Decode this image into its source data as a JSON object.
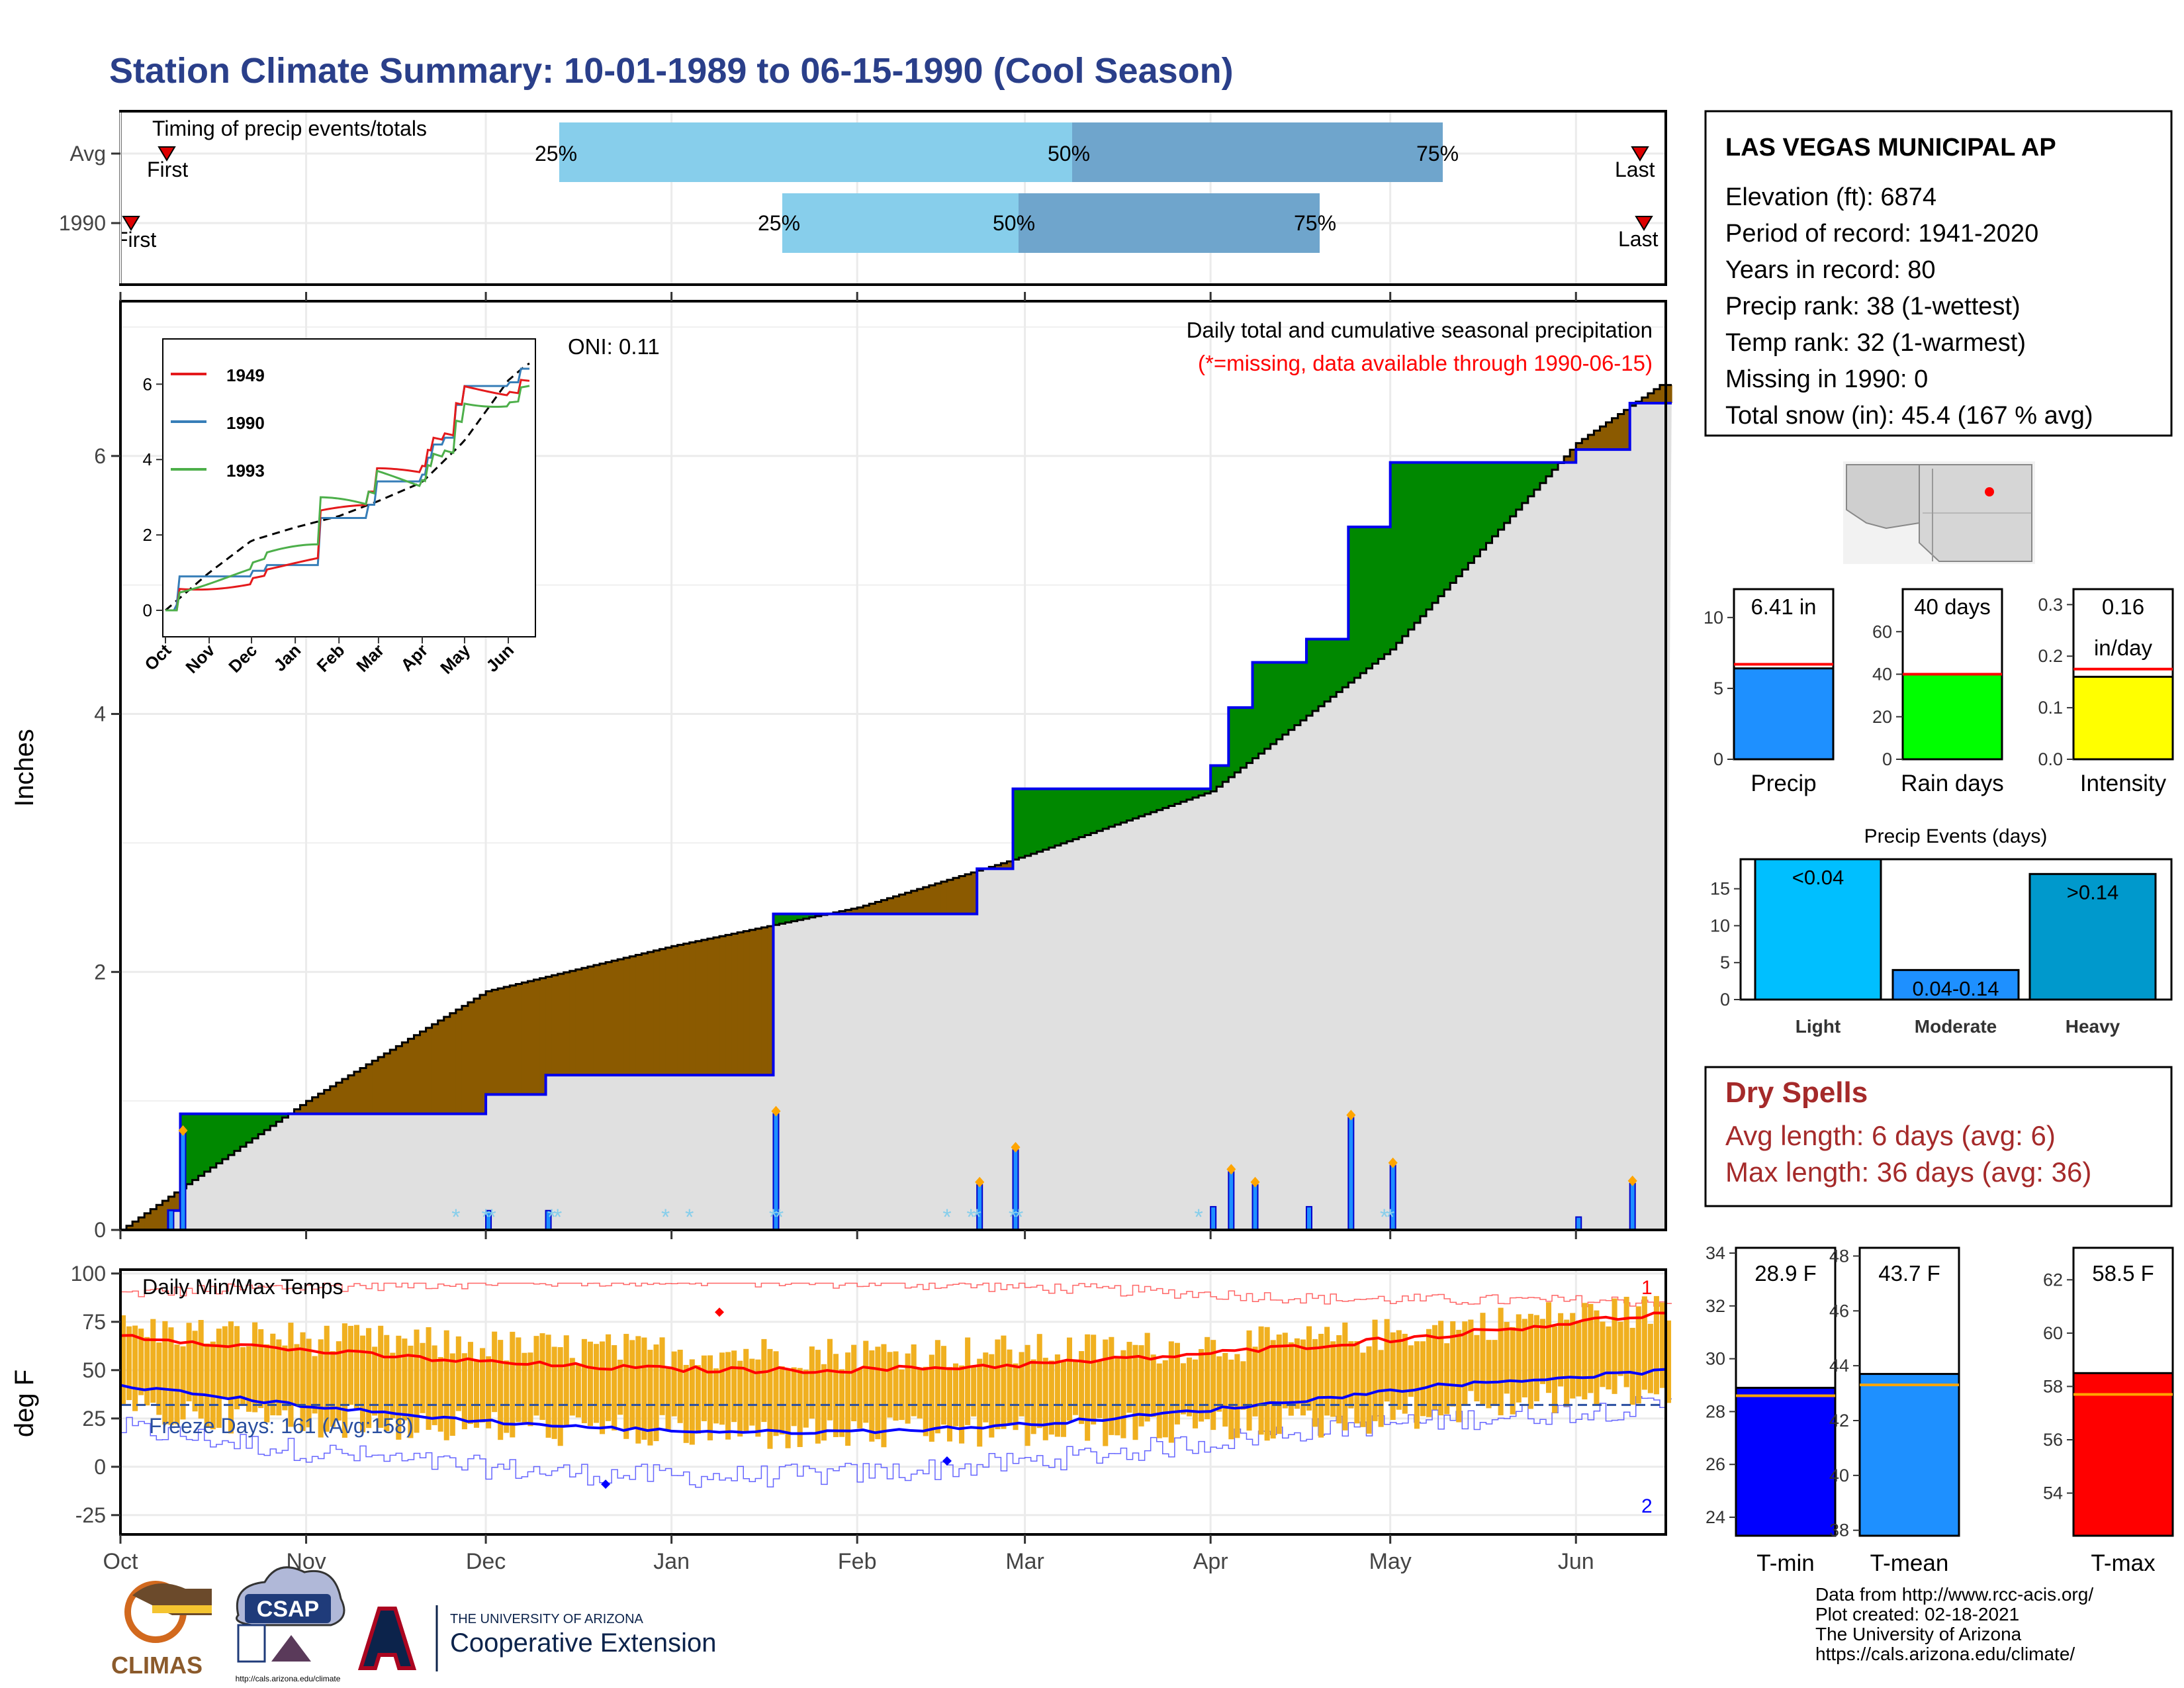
{
  "title": "Station Climate Summary: 10-01-1989 to 06-15-1990 (Cool Season)",
  "colors": {
    "title": "#2a3f8a",
    "light_blue": "#87ceeb",
    "mid_blue": "#6fa5cc",
    "brown": "#8b5a00",
    "green": "#008800",
    "grey": "#e0e0e0",
    "precip_blue": "#1e90ff",
    "rain_green": "#00ff00",
    "intensity_yellow": "#ffff00",
    "light_event": "#00bfff",
    "moderate_event": "#1e90ff",
    "heavy_event": "#0099cc",
    "dry_red": "#a52a2a",
    "tmin": "#0000ff",
    "tmax": "#ff0000",
    "bar_orange": "#f0b020"
  },
  "timing": {
    "label": "Timing of precip events/totals",
    "rows": [
      {
        "label": "Avg",
        "first": "First",
        "last": "Last",
        "p25": "25%",
        "p50": "50%",
        "p75": "75%"
      },
      {
        "label": "1990",
        "first": "First",
        "last": "Last",
        "p25": "25%",
        "p50": "50%",
        "p75": "75%"
      }
    ]
  },
  "main_plot": {
    "annotation": "Daily total and cumulative seasonal precipitation",
    "missing_note": "(*=missing, data available through 1990-06-15)",
    "oni": "ONI: 0.11",
    "ylabel": "Inches",
    "yticks": [
      "0",
      "2",
      "4",
      "6"
    ],
    "months": [
      "Oct",
      "Nov",
      "Dec",
      "Jan",
      "Feb",
      "Mar",
      "Apr",
      "May",
      "Jun"
    ]
  },
  "inset": {
    "yticks": [
      "0",
      "2",
      "4",
      "6"
    ],
    "months": [
      "Oct",
      "Nov",
      "Dec",
      "Jan",
      "Feb",
      "Mar",
      "Apr",
      "May",
      "Jun"
    ],
    "legend": [
      "1949",
      "1990",
      "1993"
    ]
  },
  "temp_plot": {
    "label": "Daily Min/Max Temps",
    "ylabel": "deg F",
    "yticks": [
      "100",
      "75",
      "50",
      "25",
      "0",
      "-25"
    ],
    "freeze": "Freeze Days: 161 (Avg:158)",
    "marker1": "1",
    "marker2": "2"
  },
  "station": {
    "name": "LAS VEGAS MUNICIPAL AP",
    "lines": [
      "Elevation (ft): 6874",
      "Period of record: 1941-2020",
      "Years in record: 80",
      "Precip rank: 38 (1-wettest)",
      "Temp rank: 32 (1-warmest)",
      "Missing in 1990: 0",
      "Total snow (in): 45.4 (167 % avg)"
    ]
  },
  "stats": {
    "precip": {
      "label": "Precip",
      "value": "6.41 in",
      "yticks": [
        "0",
        "5",
        "10"
      ]
    },
    "rain_days": {
      "label": "Rain days",
      "value": "40 days",
      "yticks": [
        "0",
        "20",
        "40",
        "60"
      ]
    },
    "intensity": {
      "label": "Intensity",
      "value": "0.16",
      "unit": "in/day",
      "yticks": [
        "0.0",
        "0.1",
        "0.2",
        "0.3"
      ]
    }
  },
  "events": {
    "title": "Precip Events (days)",
    "yticks": [
      "0",
      "5",
      "10",
      "15"
    ],
    "cats": [
      {
        "label": "Light",
        "bar": "<0.04"
      },
      {
        "label": "Moderate",
        "bar": "0.04-0.14"
      },
      {
        "label": "Heavy",
        "bar": ">0.14"
      }
    ]
  },
  "dry_spells": {
    "title": "Dry Spells",
    "avg": "Avg length: 6 days (avg: 6)",
    "max": "Max length: 36 days (avg: 36)"
  },
  "temps": {
    "tmin": {
      "label": "T-min",
      "value": "28.9 F",
      "yticks": [
        "24",
        "26",
        "28",
        "30",
        "32",
        "34"
      ]
    },
    "tmean": {
      "label": "T-mean",
      "value": "43.7 F",
      "yticks": [
        "38",
        "40",
        "42",
        "44",
        "46",
        "48"
      ]
    },
    "tmax": {
      "label": "T-max",
      "value": "58.5 F",
      "yticks": [
        "54",
        "56",
        "58",
        "60",
        "62"
      ]
    }
  },
  "footer": [
    "Data from http://www.rcc-acis.org/",
    "Plot created: 02-18-2021",
    "The University of Arizona",
    "https://cals.arizona.edu/climate/"
  ],
  "logos": {
    "climas": "CLIMAS",
    "csap": "CSAP",
    "csap_url": "http://cals.arizona.edu/climate",
    "ua_small": "THE UNIVERSITY OF ARIZONA",
    "ua_big": "Cooperative Extension"
  },
  "chart_data": [
    {
      "type": "area",
      "title": "Daily total and cumulative seasonal precipitation",
      "ylabel": "Inches",
      "ylim": [
        0,
        7.2
      ],
      "x_range": [
        "1989-10-01",
        "1990-06-15"
      ],
      "series": [
        {
          "name": "1990",
          "x": [
            "1989-10-01",
            "1989-10-08",
            "1989-10-10",
            "1989-11-20",
            "1989-12-01",
            "1989-12-11",
            "1990-01-17",
            "1990-01-18",
            "1990-02-20",
            "1990-02-21",
            "1990-02-27",
            "1990-03-30",
            "1990-04-01",
            "1990-04-04",
            "1990-04-08",
            "1990-04-17",
            "1990-04-24",
            "1990-04-30",
            "1990-05-01",
            "1990-05-31",
            "1990-06-10",
            "1990-06-15"
          ],
          "y": [
            0,
            0.15,
            0.9,
            0.9,
            1.05,
            1.2,
            1.2,
            2.45,
            2.45,
            2.8,
            3.42,
            3.42,
            3.6,
            4.05,
            4.4,
            4.58,
            5.45,
            5.45,
            5.95,
            6.05,
            6.41,
            6.41
          ]
        },
        {
          "x": [
            "1989-10-01",
            "1989-11-01",
            "1989-12-01",
            "1990-01-01",
            "1990-02-01",
            "1990-03-01",
            "1990-04-01",
            "1990-05-01",
            "1990-06-01",
            "1990-06-15"
          ],
          "y": [
            0,
            1.0,
            1.85,
            2.2,
            2.5,
            2.9,
            3.4,
            4.5,
            6.1,
            6.55
          ]
        }
      ],
      "annotations": [
        "ONI: 0.11"
      ]
    },
    {
      "type": "line",
      "title": "Daily Min/Max Temps",
      "ylabel": "deg F",
      "ylim": [
        -35,
        102
      ],
      "x_range": [
        "1989-10-01",
        "1990-06-15"
      ],
      "annotations": [
        "Freeze Days: 161 (Avg:158)"
      ]
    },
    {
      "type": "bar",
      "categories": [
        "Precip",
        "Rain days",
        "Intensity"
      ],
      "values": [
        6.41,
        40,
        0.16
      ]
    },
    {
      "type": "bar",
      "title": "Precip Events (days)",
      "categories": [
        "Light",
        "Moderate",
        "Heavy"
      ],
      "values": [
        19,
        4,
        17
      ],
      "ylim": [
        0,
        19
      ]
    },
    {
      "type": "bar",
      "categories": [
        "T-min",
        "T-mean",
        "T-max"
      ],
      "values": [
        28.9,
        43.7,
        58.5
      ]
    }
  ]
}
